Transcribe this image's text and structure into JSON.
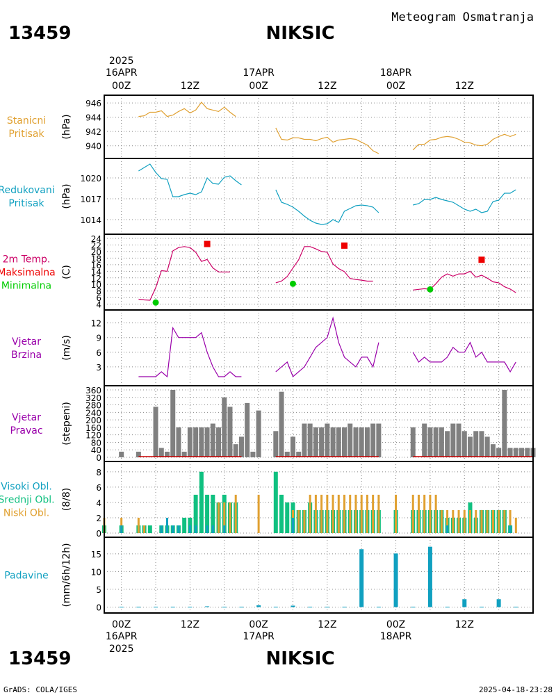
{
  "header": {
    "station_id": "13459",
    "station_name": "NIKSIC",
    "chart_title": "Meteogram Osmatranja"
  },
  "footer": {
    "station_id": "13459",
    "station_name": "NIKSIC",
    "credit": "GrADS: COLA/IGES",
    "timestamp": "2025-04-18-23:28"
  },
  "time_axis": {
    "year": "2025",
    "hour_labels": [
      "00Z",
      "12Z",
      "00Z",
      "12Z",
      "00Z",
      "12Z"
    ],
    "hour_positions_h": [
      0,
      12,
      24,
      36,
      48,
      60
    ],
    "day_labels": [
      "16APR",
      "17APR",
      "18APR"
    ],
    "day_positions_h": [
      0,
      24,
      48
    ]
  },
  "panels": [
    {
      "id": "pressure",
      "labels": [
        "Stanicni",
        "Pritisak"
      ],
      "unit": "(hPa)",
      "color": "#e0a030"
    },
    {
      "id": "mslp",
      "labels": [
        "Redukovani",
        "Pritisak"
      ],
      "unit": "(hPa)",
      "color": "#10a0c0"
    },
    {
      "id": "temp",
      "labels": [
        "2m Temp.",
        "Maksimalna",
        "Minimalna"
      ],
      "label_colors": [
        "#cc0066",
        "#ee0000",
        "#00cc00"
      ],
      "unit": "(C)"
    },
    {
      "id": "wind_speed",
      "labels": [
        "Vjetar",
        "Brzina"
      ],
      "unit": "(m/s)",
      "color": "#9900aa"
    },
    {
      "id": "wind_dir",
      "labels": [
        "Vjetar",
        "Pravac"
      ],
      "unit": "(stepeni)",
      "color": "#9900aa"
    },
    {
      "id": "clouds",
      "labels": [
        "Visoki Obl.",
        "Srednji Obl.",
        "Niski Obl."
      ],
      "label_colors": [
        "#10a0c0",
        "#10c080",
        "#e0a030"
      ],
      "unit": "(8/8)"
    },
    {
      "id": "precip",
      "labels": [
        "Padavine"
      ],
      "unit": "(mm/6h/12h)",
      "color": "#10a0c0"
    }
  ],
  "chart_data": [
    {
      "type": "line",
      "panel": "pressure",
      "ylim": [
        938.8,
        946.5
      ],
      "yticks": [
        940,
        942,
        944,
        946
      ],
      "series": [
        {
          "color": "#e0a030",
          "x": [
            3,
            4,
            5,
            6,
            7,
            8,
            9,
            10,
            11,
            12,
            13,
            14,
            15,
            16,
            17,
            18,
            19,
            20,
            21,
            27,
            28,
            29,
            30,
            31,
            32,
            33,
            34,
            35,
            36,
            37,
            38,
            39,
            40,
            41,
            42,
            43,
            44,
            45,
            51,
            52,
            53,
            54,
            55,
            56,
            57,
            58,
            59,
            60,
            61,
            62,
            63,
            64,
            65,
            66,
            67,
            68,
            69
          ],
          "y": [
            944.1,
            944.2,
            944.7,
            944.7,
            944.9,
            944.1,
            944.3,
            944.8,
            945.2,
            944.6,
            945.0,
            946.1,
            945.2,
            945.0,
            944.8,
            945.4,
            944.7,
            944.1,
            null,
            942.5,
            940.9,
            940.8,
            941.1,
            941.1,
            940.9,
            940.9,
            940.7,
            941.0,
            941.2,
            940.5,
            940.8,
            940.9,
            941.0,
            940.9,
            940.5,
            940.1,
            939.3,
            938.9,
            939.4,
            940.2,
            940.2,
            940.8,
            940.9,
            941.2,
            941.3,
            941.2,
            940.9,
            940.5,
            940.4,
            940.1,
            940.0,
            940.2,
            940.9,
            941.3,
            941.6,
            941.3,
            941.6
          ]
        }
      ]
    },
    {
      "type": "line",
      "panel": "mslp",
      "ylim": [
        1012.5,
        1022.2
      ],
      "yticks": [
        1014,
        1017,
        1020
      ],
      "series": [
        {
          "color": "#10a0c0",
          "x": [
            3,
            4,
            5,
            6,
            7,
            8,
            9,
            10,
            11,
            12,
            13,
            14,
            15,
            16,
            17,
            18,
            19,
            20,
            21,
            27,
            28,
            29,
            30,
            31,
            32,
            33,
            34,
            35,
            36,
            37,
            38,
            39,
            40,
            41,
            42,
            43,
            44,
            45,
            51,
            52,
            53,
            54,
            55,
            56,
            57,
            58,
            59,
            60,
            61,
            62,
            63,
            64,
            65,
            66,
            67,
            68,
            69
          ],
          "y": [
            1021.0,
            1021.5,
            1022.0,
            1020.8,
            1019.9,
            1019.8,
            1017.3,
            1017.3,
            1017.6,
            1017.8,
            1017.6,
            1018.0,
            1020.0,
            1019.2,
            1019.1,
            1020.1,
            1020.3,
            1019.6,
            1019.0,
            1018.3,
            1016.5,
            1016.2,
            1015.8,
            1015.2,
            1014.5,
            1013.9,
            1013.5,
            1013.3,
            1013.4,
            1014.0,
            1013.6,
            1015.2,
            1015.6,
            1016.0,
            1016.1,
            1016.0,
            1015.8,
            1015.0,
            1016.1,
            1016.3,
            1016.9,
            1016.9,
            1017.2,
            1016.9,
            1016.7,
            1016.5,
            1016.0,
            1015.5,
            1015.2,
            1015.5,
            1015.0,
            1015.2,
            1016.6,
            1016.8,
            1017.8,
            1017.8,
            1018.3
          ]
        }
      ]
    },
    {
      "type": "line",
      "panel": "temp",
      "ylim": [
        3.5,
        24
      ],
      "yticks": [
        4,
        6,
        8,
        10,
        12,
        14,
        16,
        18,
        20,
        22,
        24
      ],
      "series": [
        {
          "color": "#cc0066",
          "x": [
            3,
            4,
            5,
            6,
            7,
            8,
            9,
            10,
            11,
            12,
            13,
            14,
            15,
            16,
            17,
            18,
            19,
            20,
            21,
            27,
            28,
            29,
            30,
            31,
            32,
            33,
            34,
            35,
            36,
            37,
            38,
            39,
            40,
            41,
            42,
            43,
            44,
            45,
            51,
            52,
            53,
            54,
            55,
            56,
            57,
            58,
            59,
            60,
            61,
            62,
            63,
            64,
            65,
            66,
            67,
            68,
            69
          ],
          "y": [
            5.5,
            5.3,
            5.2,
            9.0,
            14.2,
            14.0,
            20.2,
            21.2,
            21.5,
            21.2,
            19.8,
            17.0,
            17.6,
            15.0,
            13.8,
            13.8,
            13.8,
            null,
            null,
            10.5,
            11.0,
            12.4,
            15.0,
            17.5,
            21.5,
            21.5,
            20.8,
            20.0,
            19.8,
            16.2,
            14.8,
            13.9,
            11.8,
            11.5,
            11.3,
            11.0,
            11.0,
            null,
            8.3,
            8.5,
            8.7,
            8.5,
            10.2,
            12.2,
            13.2,
            12.5,
            13.2,
            13.2,
            14.0,
            12.2,
            12.8,
            11.9,
            10.8,
            10.5,
            9.3,
            8.6,
            7.5
          ]
        }
      ],
      "markers": [
        {
          "name": "Maksimalna",
          "shape": "square",
          "color": "#ee0000",
          "x": [
            15,
            39,
            63
          ],
          "y": [
            22.3,
            21.8,
            17.5
          ]
        },
        {
          "name": "Minimalna",
          "shape": "circle",
          "color": "#00cc00",
          "x": [
            6,
            30,
            54
          ],
          "y": [
            4.5,
            10.2,
            8.5
          ]
        }
      ]
    },
    {
      "type": "line",
      "panel": "wind_speed",
      "ylim": [
        0,
        13.8
      ],
      "yticks": [
        3,
        6,
        9,
        12
      ],
      "series": [
        {
          "color": "#9900aa",
          "x": [
            3,
            4,
            5,
            6,
            7,
            8,
            9,
            10,
            11,
            12,
            13,
            14,
            15,
            16,
            17,
            18,
            19,
            20,
            21,
            27,
            28,
            29,
            30,
            31,
            32,
            33,
            34,
            35,
            36,
            37,
            38,
            39,
            40,
            41,
            42,
            43,
            44,
            45,
            51,
            52,
            53,
            54,
            55,
            56,
            57,
            58,
            59,
            60,
            61,
            62,
            63,
            64,
            65,
            66,
            67,
            68,
            69
          ],
          "y": [
            1,
            1,
            1,
            1,
            2,
            1,
            11,
            9,
            9,
            9,
            9,
            10,
            6,
            3,
            1,
            1,
            2,
            1,
            1,
            2,
            3,
            4,
            1,
            2,
            3,
            5,
            7,
            8,
            9,
            13,
            8,
            5,
            4,
            3,
            5,
            5,
            3,
            8,
            6,
            4,
            5,
            4,
            4,
            4,
            5,
            7,
            6,
            6,
            8,
            5,
            6,
            4,
            4,
            4,
            4,
            2,
            4
          ]
        }
      ]
    },
    {
      "type": "bar",
      "panel": "wind_dir",
      "ylim": [
        0,
        360
      ],
      "yticks": [
        0,
        40,
        80,
        120,
        160,
        200,
        240,
        280,
        320,
        360
      ],
      "bar_color": "#808080",
      "baseline_color": "#cc0000",
      "x": [
        0,
        3,
        6,
        7,
        8,
        9,
        10,
        11,
        12,
        13,
        14,
        15,
        16,
        17,
        18,
        19,
        20,
        21,
        22,
        23,
        24,
        27,
        28,
        29,
        30,
        31,
        32,
        33,
        34,
        35,
        36,
        37,
        38,
        39,
        40,
        41,
        42,
        43,
        44,
        45,
        51,
        53,
        54,
        55,
        56,
        57,
        58,
        59,
        60,
        61,
        62,
        63,
        64,
        65,
        66,
        67,
        68,
        69,
        70,
        71,
        72
      ],
      "values": [
        30,
        30,
        270,
        50,
        30,
        360,
        160,
        30,
        160,
        160,
        160,
        160,
        180,
        160,
        320,
        270,
        70,
        110,
        290,
        30,
        250,
        140,
        350,
        30,
        110,
        30,
        180,
        180,
        160,
        160,
        180,
        160,
        160,
        160,
        180,
        160,
        160,
        160,
        180,
        180,
        160,
        180,
        160,
        160,
        160,
        140,
        180,
        180,
        140,
        110,
        140,
        140,
        110,
        70,
        50,
        360,
        50,
        50,
        50,
        50,
        50
      ],
      "x_note": "hours from 16APR 00Z"
    },
    {
      "type": "bar",
      "panel": "clouds",
      "ylim": [
        0,
        8.8
      ],
      "yticks": [
        0,
        2,
        4,
        6,
        8
      ],
      "x": [
        -3,
        0,
        3,
        4,
        5,
        6,
        7,
        8,
        9,
        10,
        11,
        12,
        13,
        14,
        15,
        16,
        17,
        18,
        19,
        20,
        24,
        27,
        28,
        29,
        30,
        31,
        32,
        33,
        34,
        35,
        36,
        37,
        38,
        39,
        40,
        41,
        42,
        43,
        44,
        45,
        48,
        51,
        52,
        53,
        54,
        55,
        56,
        57,
        58,
        59,
        60,
        61,
        62,
        63,
        64,
        65,
        66,
        67,
        68,
        69
      ],
      "series": [
        {
          "name": "Visoki Obl.",
          "color": "#10a0c0",
          "values": [
            0,
            1,
            0,
            0,
            0,
            0,
            1,
            2,
            1,
            1,
            0,
            1,
            1,
            0,
            1,
            1,
            0,
            1,
            0,
            0,
            0,
            0,
            0,
            0,
            2,
            0,
            0,
            0,
            0,
            0,
            0,
            0,
            0,
            0,
            0,
            0,
            0,
            0,
            0,
            0,
            0,
            0,
            0,
            0,
            0,
            0,
            0,
            1,
            0,
            0,
            0,
            0,
            0,
            0,
            0,
            0,
            0,
            0,
            1,
            0
          ]
        },
        {
          "name": "Srednji Obl.",
          "color": "#10c080",
          "values": [
            1,
            1,
            1,
            1,
            1,
            0,
            1,
            1,
            1,
            1,
            2,
            2,
            5,
            8,
            5,
            5,
            4,
            5,
            4,
            4,
            0,
            8,
            5,
            4,
            4,
            3,
            3,
            4,
            3,
            3,
            3,
            3,
            3,
            3,
            3,
            3,
            3,
            3,
            3,
            3,
            3,
            3,
            3,
            3,
            3,
            3,
            3,
            2,
            2,
            2,
            2,
            4,
            2,
            3,
            3,
            3,
            3,
            3,
            1,
            0
          ]
        },
        {
          "name": "Niski Obl.",
          "color": "#e0a030",
          "values": [
            2,
            2,
            2,
            1,
            0,
            0,
            0,
            0,
            0,
            0,
            0,
            0,
            0,
            0,
            0,
            0,
            4,
            4,
            4,
            5,
            5,
            0,
            0,
            0,
            3,
            3,
            3,
            5,
            5,
            5,
            5,
            5,
            5,
            5,
            5,
            5,
            5,
            5,
            5,
            5,
            5,
            5,
            5,
            5,
            5,
            5,
            3,
            3,
            3,
            3,
            3,
            3,
            3,
            3,
            3,
            3,
            3,
            3,
            3,
            2
          ]
        }
      ]
    },
    {
      "type": "bar",
      "panel": "precip",
      "ylim": [
        -0.5,
        18.5
      ],
      "yticks": [
        0,
        5,
        10,
        15
      ],
      "bar_color": "#10a0c0",
      "x": [
        0,
        3,
        6,
        9,
        12,
        15,
        18,
        21,
        24,
        27,
        30,
        33,
        36,
        39,
        42,
        45,
        48,
        51,
        54,
        57,
        60,
        63,
        66,
        69
      ],
      "values": [
        0.1,
        0.1,
        0.1,
        0.1,
        0.1,
        0.2,
        0.1,
        0.1,
        0.5,
        0.1,
        0.4,
        0.1,
        0.1,
        0.1,
        16.3,
        0.1,
        15.1,
        0.1,
        17.0,
        0.1,
        2.2,
        0.1,
        2.2,
        0.1
      ]
    }
  ]
}
